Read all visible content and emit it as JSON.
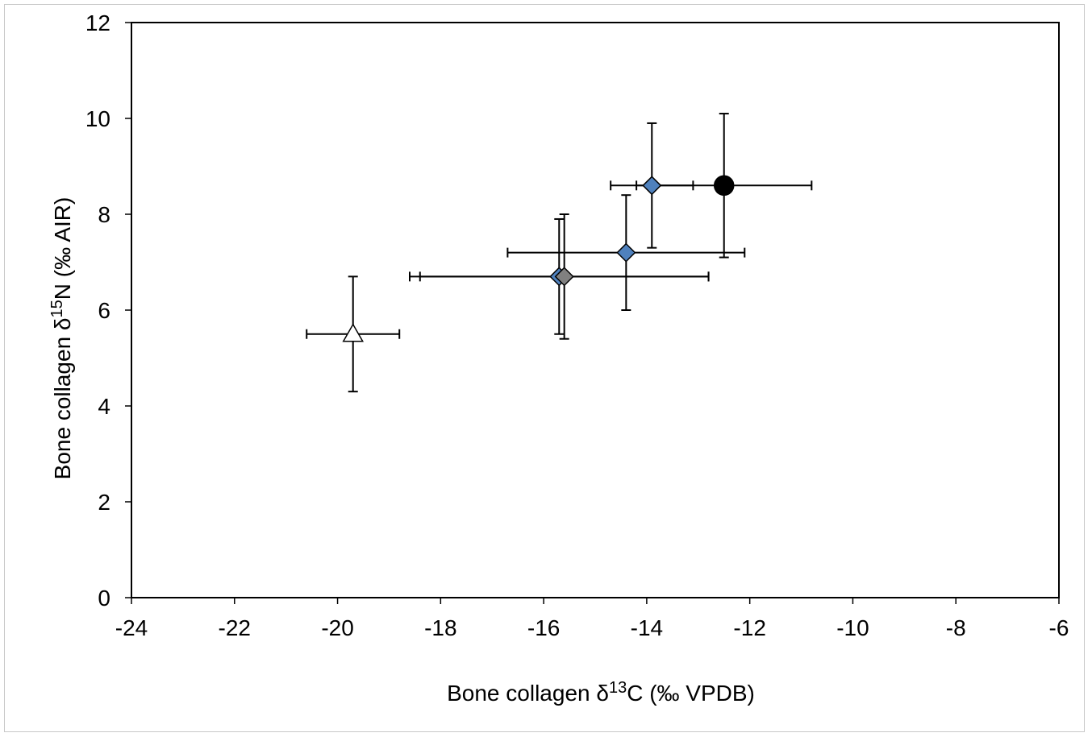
{
  "chart_data": {
    "type": "scatter",
    "title": "",
    "xlabel": {
      "prefix": "Bone collagen δ",
      "sup": "13",
      "suffix": "C (‰ VPDB)"
    },
    "ylabel": {
      "prefix": "Bone collagen δ",
      "sup": "15",
      "suffix": "N (‰ AIR)"
    },
    "xlim": [
      -24,
      -6
    ],
    "ylim": [
      0,
      12
    ],
    "xticks": [
      "-24",
      "-22",
      "-20",
      "-18",
      "-16",
      "-14",
      "-12",
      "-10",
      "-8",
      "-6"
    ],
    "yticks": [
      "0",
      "2",
      "4",
      "6",
      "8",
      "10",
      "12"
    ],
    "grid": false,
    "legend": "none",
    "points": [
      {
        "marker": "triangle",
        "fill": "#ffffff",
        "x": -19.7,
        "y": 5.5,
        "xerr": 0.9,
        "yerr": 1.2
      },
      {
        "marker": "diamond",
        "fill": "#4f81bd",
        "x": -15.7,
        "y": 6.7,
        "xerr": 2.9,
        "yerr": 1.2
      },
      {
        "marker": "diamond",
        "fill": "#808080",
        "x": -15.6,
        "y": 6.7,
        "xerr": 2.8,
        "yerr": 1.3
      },
      {
        "marker": "diamond",
        "fill": "#4f81bd",
        "x": -14.4,
        "y": 7.2,
        "xerr": 2.3,
        "yerr": 1.2
      },
      {
        "marker": "diamond",
        "fill": "#4f81bd",
        "x": -13.9,
        "y": 8.6,
        "xerr": 0.8,
        "yerr": 1.3
      },
      {
        "marker": "circle",
        "fill": "#000000",
        "x": -12.5,
        "y": 8.6,
        "xerr": 1.7,
        "yerr": 1.5
      }
    ]
  }
}
